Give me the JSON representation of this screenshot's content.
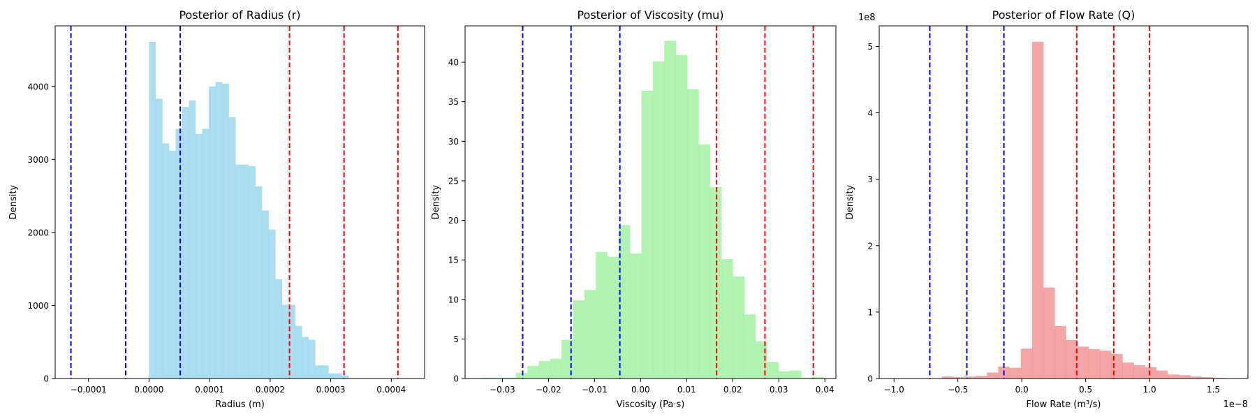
{
  "chart_data": [
    {
      "type": "histogram",
      "title": "Posterior of Radius (r)",
      "xlabel": "Radius (m)",
      "ylabel": "Density",
      "xlim": [
        -0.000155,
        0.000455
      ],
      "ylim": [
        0,
        4830
      ],
      "xticks": [
        -0.0001,
        0.0,
        0.0001,
        0.0002,
        0.0003,
        0.0004
      ],
      "xtick_labels": [
        "−0.0001",
        "0.0000",
        "0.0001",
        "0.0002",
        "0.0003",
        "0.0004"
      ],
      "yticks": [
        0,
        1000,
        2000,
        3000,
        4000
      ],
      "ytick_labels": [
        "0",
        "1000",
        "2000",
        "3000",
        "4000"
      ],
      "y_offset_label": "",
      "color": "#87ceeb",
      "opacity": 0.7,
      "bin_start": 0.0,
      "bin_width": 1.097e-05,
      "values": [
        4610,
        3830,
        3220,
        3120,
        3420,
        3720,
        3810,
        3350,
        3420,
        4000,
        4060,
        4040,
        3580,
        2930,
        2930,
        2910,
        2630,
        2300,
        2040,
        1360,
        1010,
        1010,
        720,
        570,
        530,
        180,
        180,
        70,
        70,
        40
      ],
      "vlines": [
        {
          "x": -0.000129,
          "color": "#0000ff"
        },
        {
          "x": -3.85e-05,
          "color": "#0000ff"
        },
        {
          "x": 5.15e-05,
          "color": "#0000ff"
        },
        {
          "x": 0.000232,
          "color": "#ff0000"
        },
        {
          "x": 0.000322,
          "color": "#ff0000"
        },
        {
          "x": 0.000411,
          "color": "#ff0000"
        }
      ]
    },
    {
      "type": "histogram",
      "title": "Posterior of Viscosity (mu)",
      "xlabel": "Viscosity (Pa·s)",
      "ylabel": "Density",
      "xlim": [
        -0.0381,
        0.0424
      ],
      "ylim": [
        0,
        44.6
      ],
      "xticks": [
        -0.03,
        -0.02,
        -0.01,
        0.0,
        0.01,
        0.02,
        0.03,
        0.04
      ],
      "xtick_labels": [
        "−0.03",
        "−0.02",
        "−0.01",
        "0.00",
        "0.01",
        "0.02",
        "0.03",
        "0.04"
      ],
      "yticks": [
        0,
        5,
        10,
        15,
        20,
        25,
        30,
        35,
        40
      ],
      "ytick_labels": [
        "0",
        "5",
        "10",
        "15",
        "20",
        "25",
        "30",
        "35",
        "40"
      ],
      "y_offset_label": "",
      "color": "#90ee90",
      "opacity": 0.7,
      "bin_start": -0.0345,
      "bin_width": 0.002478,
      "values": [
        0.1,
        0.1,
        0.1,
        0.7,
        1.6,
        2.2,
        2.5,
        4.9,
        9.9,
        11.2,
        16.0,
        15.4,
        19.4,
        15.8,
        36.4,
        40.1,
        42.7,
        40.9,
        36.6,
        29.6,
        24.2,
        15.1,
        12.9,
        8.1,
        4.7,
        2.1,
        0.9,
        1.0,
        0.1,
        0.2
      ],
      "vlines": [
        {
          "x": -0.0256,
          "color": "#0000ff"
        },
        {
          "x": -0.0151,
          "color": "#0000ff"
        },
        {
          "x": -0.0045,
          "color": "#0000ff"
        },
        {
          "x": 0.0165,
          "color": "#ff0000"
        },
        {
          "x": 0.027,
          "color": "#ff0000"
        },
        {
          "x": 0.0375,
          "color": "#ff0000"
        }
      ]
    },
    {
      "type": "histogram",
      "title": "Posterior of Flow Rate (Q)",
      "xlabel": "Flow Rate (m³/s)",
      "ylabel": "Density",
      "xlim": [
        -1.116e-08,
        1.77e-08
      ],
      "ylim": [
        0,
        531000000.0
      ],
      "xticks": [
        -1e-08,
        -5e-09,
        0.0,
        5e-09,
        1e-08,
        1.5e-08
      ],
      "xtick_labels": [
        "−1.0",
        "−0.5",
        "0.0",
        "0.5",
        "1.0",
        "1.5"
      ],
      "yticks": [
        0,
        100000000.0,
        200000000.0,
        300000000.0,
        400000000.0,
        500000000.0
      ],
      "ytick_labels": [
        "0",
        "1",
        "2",
        "3",
        "4",
        "5"
      ],
      "y_offset_label": "1e8",
      "x_offset_label": "1e−8",
      "color": "#f08080",
      "opacity": 0.7,
      "bin_start": -9.8e-09,
      "bin_width": 8.84e-10,
      "values": [
        500000.0,
        500000.0,
        500000.0,
        500000.0,
        3000000.0,
        2000000.0,
        3000000.0,
        4000000.0,
        9000000.0,
        18000000.0,
        16000000.0,
        45000000.0,
        507000000.0,
        137000000.0,
        79000000.0,
        58000000.0,
        48000000.0,
        44000000.0,
        42000000.0,
        37000000.0,
        24000000.0,
        20000000.0,
        17000000.0,
        12000000.0,
        6000000.0,
        5000000.0,
        3000000.0,
        2000000.0,
        1000000.0,
        500000.0
      ],
      "vlines": [
        {
          "x": -7.2e-09,
          "color": "#0000ff"
        },
        {
          "x": -4.3e-09,
          "color": "#0000ff"
        },
        {
          "x": -1.4e-09,
          "color": "#0000ff"
        },
        {
          "x": 4.3e-09,
          "color": "#ff0000"
        },
        {
          "x": 7.2e-09,
          "color": "#ff0000"
        },
        {
          "x": 1e-08,
          "color": "#ff0000"
        }
      ]
    }
  ]
}
